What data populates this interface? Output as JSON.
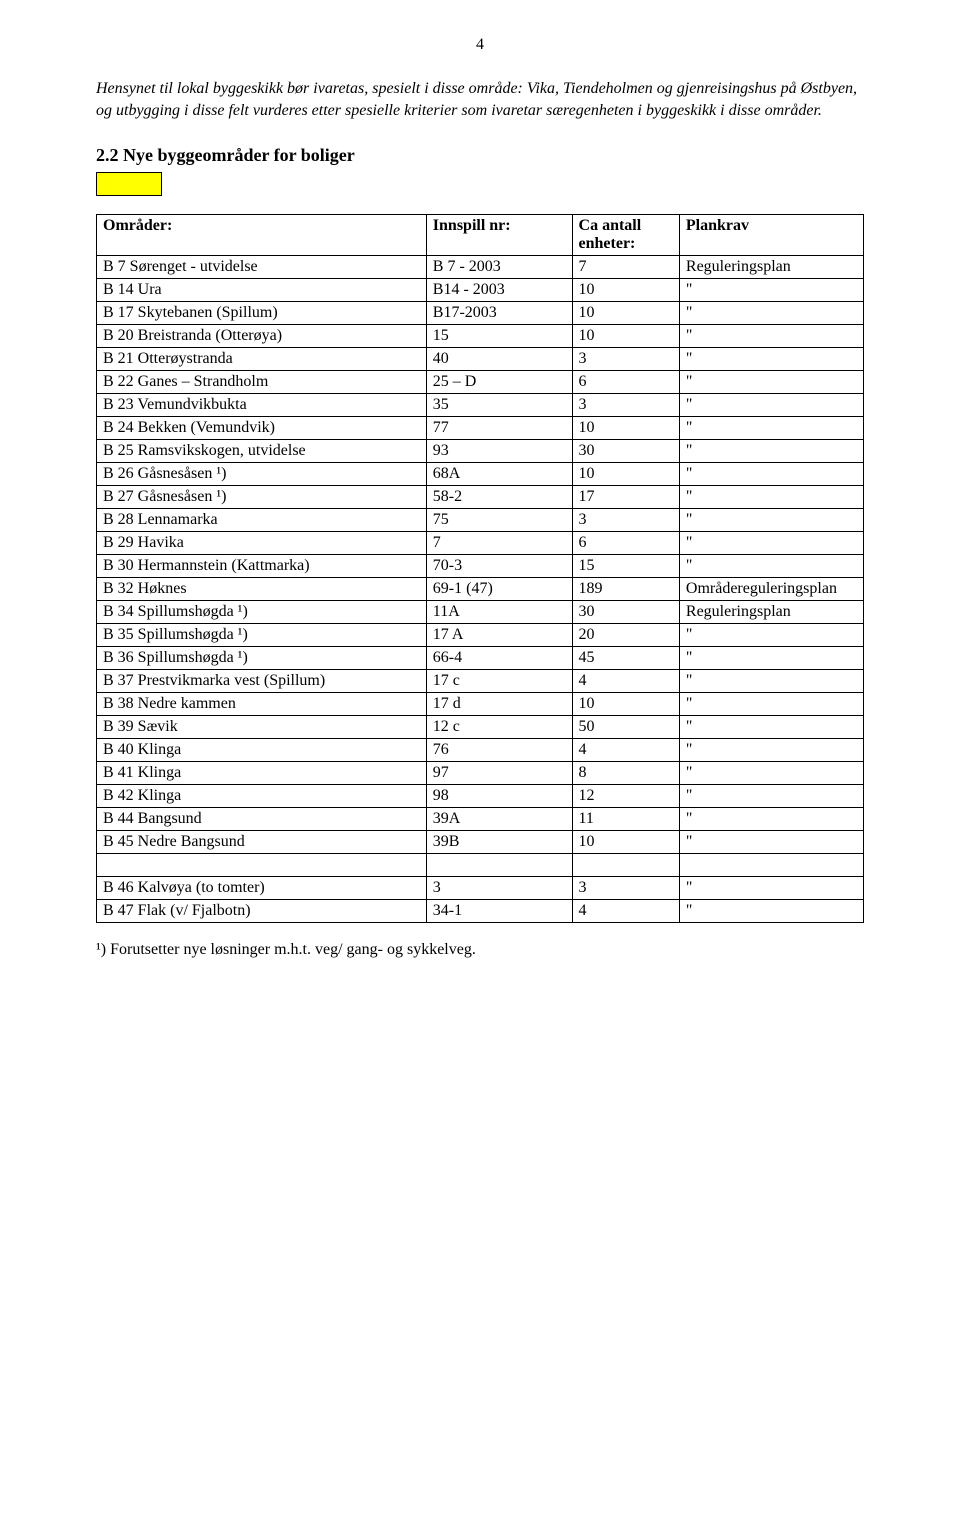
{
  "pageNumber": "4",
  "intro": "Hensynet til lokal byggeskikk bør ivaretas, spesielt i disse område: Vika, Tiendeholmen og gjenreisingshus på Østbyen, og utbygging i disse felt vurderes etter spesielle kriterier som ivaretar særegenheten i byggeskikk i disse områder.",
  "section": {
    "heading": "2.2 Nye byggeområder for boliger",
    "swatchColor": "#ffff00",
    "swatchBorder": "#000000"
  },
  "table": {
    "headers": {
      "c1": "Områder:",
      "c2": "Innspill nr:",
      "c3": "Ca antall enheter:",
      "c4": "Plankrav"
    },
    "rows": [
      {
        "c1": "B 7 Sørenget - utvidelse",
        "c2": "B 7 - 2003",
        "c3": "7",
        "c4": "Reguleringsplan"
      },
      {
        "c1": "B 14 Ura",
        "c2": "B14 - 2003",
        "c3": "10",
        "c4": "\""
      },
      {
        "c1": "B 17 Skytebanen (Spillum)",
        "c2": "B17-2003",
        "c3": "10",
        "c4": "\""
      },
      {
        "c1": "B 20 Breistranda (Otterøya)",
        "c2": "15",
        "c3": "10",
        "c4": "\""
      },
      {
        "c1": "B 21 Otterøystranda",
        "c2": "40",
        "c3": "3",
        "c4": "\""
      },
      {
        "c1": "B 22 Ganes – Strandholm",
        "c2": "25 – D",
        "c3": "6",
        "c4": "\""
      },
      {
        "c1": "B 23 Vemundvikbukta",
        "c2": "35",
        "c3": "3",
        "c4": "\""
      },
      {
        "c1": "B 24 Bekken (Vemundvik)",
        "c2": "77",
        "c3": "10",
        "c4": "\""
      },
      {
        "c1": "B 25 Ramsvikskogen, utvidelse",
        "c2": "93",
        "c3": "30",
        "c4": "\""
      },
      {
        "c1": "B 26 Gåsnesåsen ¹)",
        "c2": "68A",
        "c3": "10",
        "c4": "\""
      },
      {
        "c1": "B 27 Gåsnesåsen ¹)",
        "c2": "58-2",
        "c3": "17",
        "c4": "\""
      },
      {
        "c1": "B 28 Lennamarka",
        "c2": "75",
        "c3": "3",
        "c4": "\""
      },
      {
        "c1": "B 29 Havika",
        "c2": " 7",
        "c3": "6",
        "c4": "\""
      },
      {
        "c1": "B 30 Hermannstein (Kattmarka)",
        "c2": "70-3",
        "c3": "15",
        "c4": "\""
      },
      {
        "c1": "B 32 Høknes",
        "c2": "69-1 (47)",
        "c3": "189",
        "c4": "Områdereguleringsplan"
      },
      {
        "c1": "B 34 Spillumshøgda ¹)",
        "c2": "11A",
        "c3": "30",
        "c4": "Reguleringsplan"
      },
      {
        "c1": "B 35 Spillumshøgda ¹)",
        "c2": "17 A",
        "c3": "20",
        "c4": "\""
      },
      {
        "c1": "B 36 Spillumshøgda ¹)",
        "c2": "66-4",
        "c3": "45",
        "c4": "\""
      },
      {
        "c1": "B 37 Prestvikmarka vest (Spillum)",
        "c2": "17 c",
        "c3": "4",
        "c4": "\""
      },
      {
        "c1": "B 38 Nedre kammen",
        "c2": "17 d",
        "c3": "10",
        "c4": "\""
      },
      {
        "c1": "B 39 Sævik",
        "c2": "12 c",
        "c3": "50",
        "c4": "\""
      },
      {
        "c1": "B 40 Klinga",
        "c2": "76",
        "c3": "4",
        "c4": "\""
      },
      {
        "c1": "B 41 Klinga",
        "c2": "97",
        "c3": "8",
        "c4": "\""
      },
      {
        "c1": "B 42 Klinga",
        "c2": "98",
        "c3": "12",
        "c4": "\""
      },
      {
        "c1": "B 44 Bangsund",
        "c2": "39A",
        "c3": "11",
        "c4": "\""
      },
      {
        "c1": "B 45 Nedre Bangsund",
        "c2": "39B",
        "c3": "10",
        "c4": "\""
      }
    ],
    "rows2": [
      {
        "c1": "B 46 Kalvøya (to tomter)",
        "c2": "3",
        "c3": "3",
        "c4": "\""
      },
      {
        "c1": "B 47 Flak (v/ Fjalbotn)",
        "c2": "34-1",
        "c3": "4",
        "c4": "\""
      }
    ]
  },
  "footnote": "¹) Forutsetter nye løsninger m.h.t. veg/ gang- og sykkelveg."
}
